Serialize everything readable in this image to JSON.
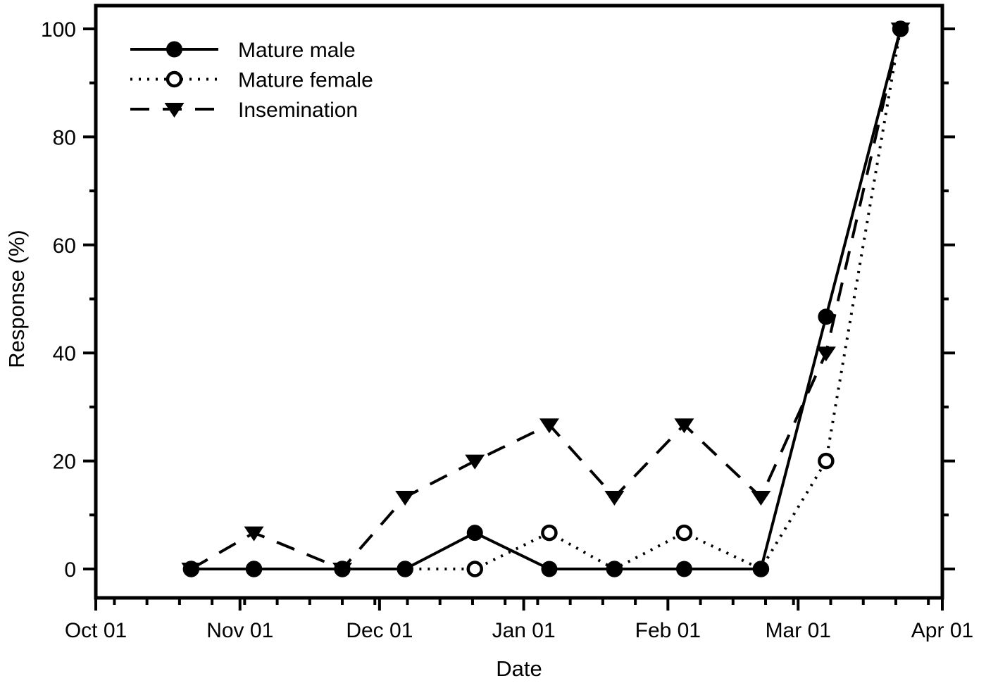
{
  "figure": {
    "background_color": "#ffffff",
    "ink_color": "#000000"
  },
  "chart_data": {
    "type": "line",
    "title": "",
    "xlabel": "Date",
    "ylabel": "Response (%)",
    "ylim": [
      0,
      100
    ],
    "grid": false,
    "legend_position": "upper-left-inside",
    "yaxis": {
      "major_ticks": [
        0,
        20,
        40,
        60,
        80,
        100
      ],
      "major_tick_labels": [
        "0",
        "20",
        "40",
        "60",
        "80",
        "100"
      ],
      "minor_ticks": [
        10,
        30,
        50,
        70,
        90
      ],
      "mirrored_on_right": true
    },
    "xaxis": {
      "domain_days": 182,
      "major_ticks": [
        {
          "day": 0,
          "label": "Oct 01"
        },
        {
          "day": 31,
          "label": "Nov 01"
        },
        {
          "day": 61,
          "label": "Dec 01"
        },
        {
          "day": 92,
          "label": "Jan 01"
        },
        {
          "day": 123,
          "label": "Feb 01"
        },
        {
          "day": 151,
          "label": "Mar 01"
        },
        {
          "day": 182,
          "label": "Apr 01"
        }
      ],
      "minor_tick_days": [
        4,
        11,
        18,
        25,
        32,
        39,
        46,
        53,
        60,
        67,
        74,
        81,
        88,
        95,
        102,
        109,
        116,
        130,
        137,
        144,
        150,
        158,
        165,
        172,
        179
      ]
    },
    "x_sample_days": [
      20.5,
      34,
      53,
      66.5,
      81.5,
      97.5,
      111.5,
      126.5,
      143,
      157,
      173
    ],
    "x_sample_dates_estimated": [
      "Oct 21",
      "Nov 04",
      "Nov 23",
      "Dec 06",
      "Dec 21",
      "Jan 06",
      "Jan 20",
      "Feb 04",
      "Feb 21",
      "Mar 07",
      "Mar 22"
    ],
    "series": [
      {
        "name": "Mature male",
        "marker": "filled-circle-marker",
        "line_style": "solid",
        "values": [
          0,
          0,
          0,
          0,
          6.7,
          0,
          0,
          0,
          0,
          46.7,
          100
        ]
      },
      {
        "name": "Mature female",
        "marker": "open-circle-marker",
        "line_style": "dotted",
        "values": [
          0,
          0,
          0,
          0,
          0,
          6.7,
          0,
          6.7,
          0,
          20,
          100
        ]
      },
      {
        "name": "Insemination",
        "marker": "filled-triangle-down-marker",
        "line_style": "dashed",
        "values": [
          0,
          6.7,
          0,
          13.3,
          20,
          26.7,
          13.3,
          26.7,
          13.3,
          40,
          100
        ]
      }
    ]
  }
}
